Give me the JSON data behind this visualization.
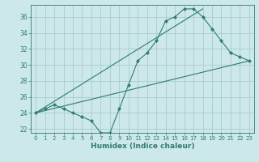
{
  "xlabel": "Humidex (Indice chaleur)",
  "bg_color": "#cde8e8",
  "grid_color": "#b0d4d4",
  "line_color": "#2e7d6e",
  "xlim": [
    -0.5,
    23.5
  ],
  "ylim": [
    21.5,
    37.5
  ],
  "xticks": [
    0,
    1,
    2,
    3,
    4,
    5,
    6,
    7,
    8,
    9,
    10,
    11,
    12,
    13,
    14,
    15,
    16,
    17,
    18,
    19,
    20,
    21,
    22,
    23
  ],
  "yticks": [
    22,
    24,
    26,
    28,
    30,
    32,
    34,
    36
  ],
  "line1_x": [
    0,
    1,
    2,
    3,
    4,
    5,
    6,
    7,
    8,
    9,
    10,
    11,
    12,
    13,
    14,
    15,
    16,
    17,
    18,
    19,
    20,
    21,
    22,
    23
  ],
  "line1_y": [
    24.0,
    24.5,
    25.0,
    24.5,
    24.0,
    23.5,
    23.0,
    21.5,
    21.5,
    24.5,
    27.5,
    30.5,
    31.5,
    33.0,
    35.5,
    36.0,
    37.0,
    37.0,
    36.0,
    34.5,
    33.0,
    31.5,
    31.0,
    30.5
  ],
  "line2_x": [
    0,
    23
  ],
  "line2_y": [
    24.0,
    30.5
  ],
  "line3_x": [
    0,
    18
  ],
  "line3_y": [
    24.0,
    37.0
  ]
}
